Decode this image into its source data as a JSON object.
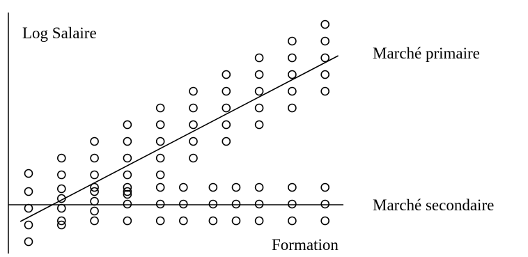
{
  "chart_data": {
    "type": "scatter",
    "title": "",
    "ylabel": "Log Salaire",
    "xlabel": "Formation",
    "axis_ticks": "none",
    "series": [
      {
        "name": "Marché primaire",
        "points": [
          [
            0,
            249
          ],
          [
            0,
            275
          ],
          [
            0,
            299
          ],
          [
            0,
            323
          ],
          [
            0,
            347
          ],
          [
            1,
            227
          ],
          [
            1,
            251
          ],
          [
            1,
            271
          ],
          [
            1,
            285
          ],
          [
            1,
            299
          ],
          [
            1,
            317
          ],
          [
            2,
            203
          ],
          [
            2,
            227
          ],
          [
            2,
            251
          ],
          [
            2,
            275
          ],
          [
            3,
            179
          ],
          [
            3,
            203
          ],
          [
            3,
            227
          ],
          [
            3,
            251
          ],
          [
            3,
            275
          ],
          [
            4,
            155
          ],
          [
            4,
            179
          ],
          [
            4,
            203
          ],
          [
            4,
            227
          ],
          [
            4,
            251
          ],
          [
            5,
            131
          ],
          [
            5,
            155
          ],
          [
            5,
            179
          ],
          [
            5,
            203
          ],
          [
            5,
            227
          ],
          [
            6,
            107
          ],
          [
            6,
            131
          ],
          [
            6,
            155
          ],
          [
            6,
            179
          ],
          [
            6,
            203
          ],
          [
            7,
            83
          ],
          [
            7,
            107
          ],
          [
            7,
            131
          ],
          [
            7,
            155
          ],
          [
            7,
            179
          ],
          [
            8,
            59
          ],
          [
            8,
            83
          ],
          [
            8,
            107
          ],
          [
            8,
            131
          ],
          [
            8,
            155
          ],
          [
            9,
            35
          ],
          [
            9,
            59
          ],
          [
            9,
            83
          ],
          [
            9,
            107
          ],
          [
            9,
            131
          ]
        ],
        "trend_line": {
          "from": [
            -0.25,
            318
          ],
          "to": [
            9.4,
            80
          ]
        }
      },
      {
        "name": "Marché secondaire",
        "points": [
          [
            1,
            323
          ],
          [
            2,
            269
          ],
          [
            2,
            289
          ],
          [
            2,
            303
          ],
          [
            2,
            317
          ],
          [
            3,
            269
          ],
          [
            3,
            279
          ],
          [
            3,
            293
          ],
          [
            3,
            317
          ],
          [
            4,
            269
          ],
          [
            4,
            293
          ],
          [
            4,
            317
          ],
          [
            4.7,
            269
          ],
          [
            4.7,
            293
          ],
          [
            4.7,
            317
          ],
          [
            5.6,
            269
          ],
          [
            5.6,
            293
          ],
          [
            5.6,
            317
          ],
          [
            6.3,
            269
          ],
          [
            6.3,
            293
          ],
          [
            6.3,
            317
          ],
          [
            7,
            269
          ],
          [
            7,
            293
          ],
          [
            7,
            317
          ],
          [
            8,
            269
          ],
          [
            8,
            293
          ],
          [
            8,
            317
          ],
          [
            9,
            269
          ],
          [
            9,
            293
          ],
          [
            9,
            317
          ]
        ],
        "trend_line": {
          "from": [
            -0.25,
            294
          ],
          "to": [
            9.4,
            294
          ]
        }
      }
    ]
  }
}
